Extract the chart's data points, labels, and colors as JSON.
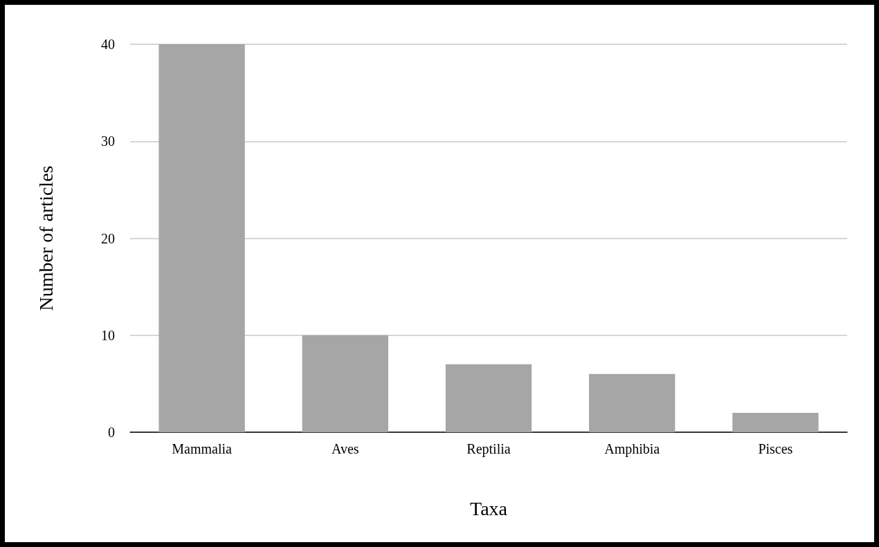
{
  "chart_data": {
    "type": "bar",
    "xlabel": "Taxa",
    "ylabel": "Number of articles",
    "categories": [
      "Mammalia",
      "Aves",
      "Reptilia",
      "Amphibia",
      "Pisces"
    ],
    "values": [
      40,
      10,
      7,
      6,
      2
    ],
    "color": "#a6a6a6",
    "ylim": [
      0,
      40
    ],
    "yticks": [
      0,
      10,
      20,
      30,
      40
    ],
    "grid": "y"
  }
}
